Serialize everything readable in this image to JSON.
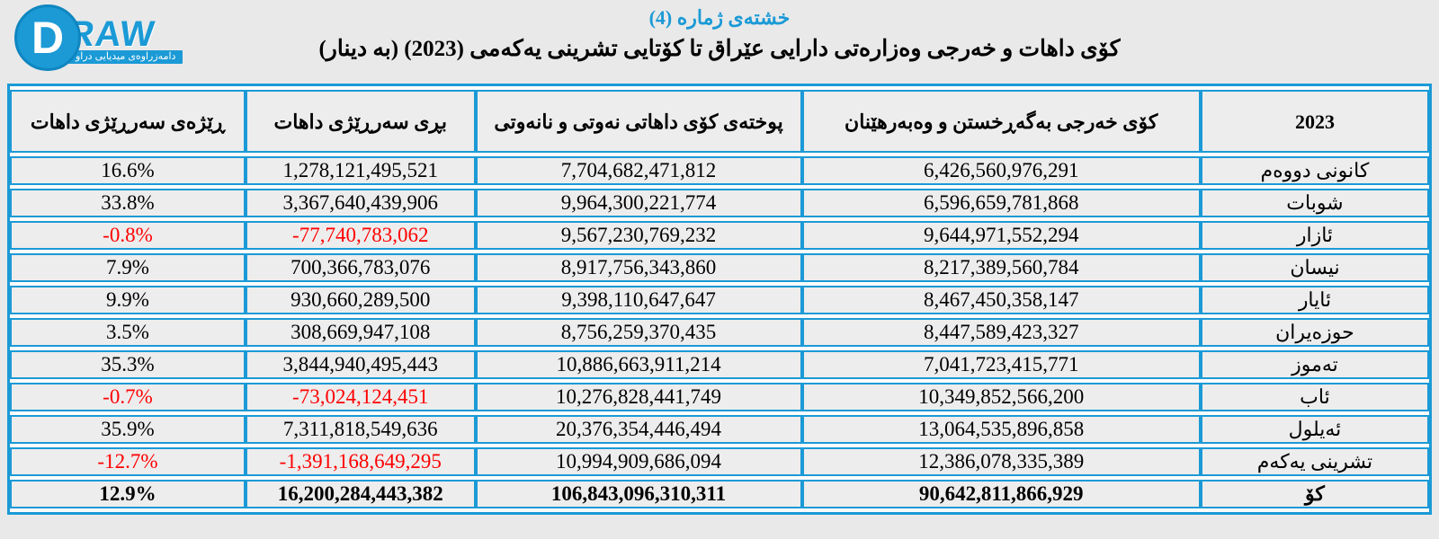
{
  "logo": {
    "d_letter": "D",
    "raw_text": "RAW",
    "banner_text": "دامەزراوەی میدیایی دراو"
  },
  "title": "خشتەی ژمارە (4)",
  "subtitle": "كۆی داهات و خەرجی وەزارەتی دارایی عێراق تا كۆتایی تشرینی یەكەمی (2023) (بە دینار)",
  "colors": {
    "accent_blue": "#1b9ad6",
    "negative_red": "#ff0000",
    "cell_bg": "#ededed",
    "page_bg": "#e9e9e9"
  },
  "table": {
    "column_keys": [
      "pct",
      "surplus",
      "revenue",
      "expense",
      "month"
    ],
    "headers": [
      "ڕێژەی سەرڕێژی داهات",
      "بڕی سەرڕێژی داهات",
      "پوختەی كۆی داهاتی نەوتی و نانەوتی",
      "كۆی خەرجی بەگەڕخستن و وەبەرهێنان",
      "2023"
    ],
    "rows": [
      {
        "month": "كانونی دووەم",
        "expense": "6,426,560,976,291",
        "revenue": "7,704,682,471,812",
        "surplus": "1,278,121,495,521",
        "pct": "16.6%",
        "negative": false,
        "is_total": false
      },
      {
        "month": "شوبات",
        "expense": "6,596,659,781,868",
        "revenue": "9,964,300,221,774",
        "surplus": "3,367,640,439,906",
        "pct": "33.8%",
        "negative": false,
        "is_total": false
      },
      {
        "month": "ئازار",
        "expense": "9,644,971,552,294",
        "revenue": "9,567,230,769,232",
        "surplus": "-77,740,783,062",
        "pct": "-0.8%",
        "negative": true,
        "is_total": false
      },
      {
        "month": "نیسان",
        "expense": "8,217,389,560,784",
        "revenue": "8,917,756,343,860",
        "surplus": "700,366,783,076",
        "pct": "7.9%",
        "negative": false,
        "is_total": false
      },
      {
        "month": "ئایار",
        "expense": "8,467,450,358,147",
        "revenue": "9,398,110,647,647",
        "surplus": "930,660,289,500",
        "pct": "9.9%",
        "negative": false,
        "is_total": false
      },
      {
        "month": "حوزەیران",
        "expense": "8,447,589,423,327",
        "revenue": "8,756,259,370,435",
        "surplus": "308,669,947,108",
        "pct": "3.5%",
        "negative": false,
        "is_total": false
      },
      {
        "month": "تەموز",
        "expense": "7,041,723,415,771",
        "revenue": "10,886,663,911,214",
        "surplus": "3,844,940,495,443",
        "pct": "35.3%",
        "negative": false,
        "is_total": false
      },
      {
        "month": "ئاب",
        "expense": "10,349,852,566,200",
        "revenue": "10,276,828,441,749",
        "surplus": "-73,024,124,451",
        "pct": "-0.7%",
        "negative": true,
        "is_total": false
      },
      {
        "month": "ئەیلول",
        "expense": "13,064,535,896,858",
        "revenue": "20,376,354,446,494",
        "surplus": "7,311,818,549,636",
        "pct": "35.9%",
        "negative": false,
        "is_total": false
      },
      {
        "month": "تشرینی یەكەم",
        "expense": "12,386,078,335,389",
        "revenue": "10,994,909,686,094",
        "surplus": "-1,391,168,649,295",
        "pct": "-12.7%",
        "negative": true,
        "is_total": false
      },
      {
        "month": "كۆ",
        "expense": "90,642,811,866,929",
        "revenue": "106,843,096,310,311",
        "surplus": "16,200,284,443,382",
        "pct": "12.9%",
        "negative": false,
        "is_total": true
      }
    ]
  }
}
